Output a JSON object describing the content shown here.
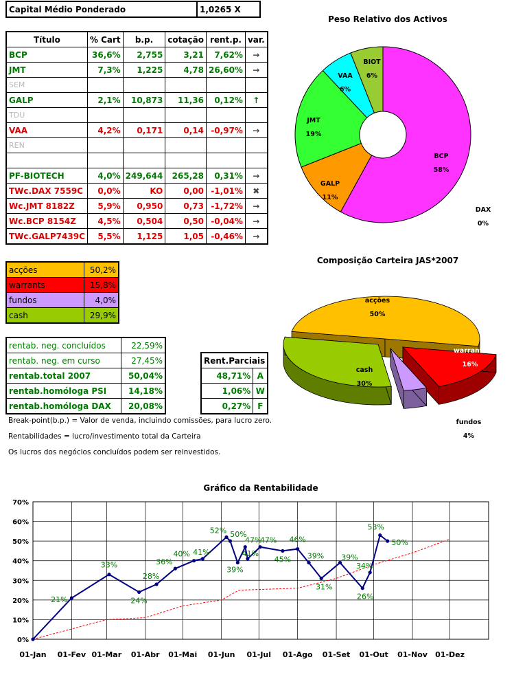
{
  "capital": {
    "label": "Capital Médio Ponderado",
    "value": "1,0265 X"
  },
  "holdings": {
    "headers": [
      "Título",
      "% Cart",
      "b.p.",
      "cotação",
      "rent.p.",
      "var."
    ],
    "rows": [
      {
        "cells": [
          "BCP",
          "36,6%",
          "2,755",
          "3,21",
          "7,62%"
        ],
        "var": "→",
        "style": "green"
      },
      {
        "cells": [
          "JMT",
          "7,3%",
          "1,225",
          "4,78",
          "26,60%"
        ],
        "var": "→",
        "style": "green"
      },
      {
        "cells": [
          "SEM",
          "",
          "",
          "",
          ""
        ],
        "var": "",
        "style": "grey"
      },
      {
        "cells": [
          "GALP",
          "2,1%",
          "10,873",
          "11,36",
          "0,12%"
        ],
        "var": "↑",
        "style": "green"
      },
      {
        "cells": [
          "TDU",
          "",
          "",
          "",
          ""
        ],
        "var": "",
        "style": "grey"
      },
      {
        "cells": [
          "VAA",
          "4,2%",
          "0,171",
          "0,14",
          "-0,97%"
        ],
        "var": "→",
        "style": "red"
      },
      {
        "cells": [
          "REN",
          "",
          "",
          "",
          ""
        ],
        "var": "",
        "style": "grey"
      },
      {
        "cells": [
          "",
          "",
          "",
          "",
          ""
        ],
        "var": "",
        "style": "grey"
      },
      {
        "cells": [
          "PF-BIOTECH",
          "4,0%",
          "249,644",
          "265,28",
          "0,31%"
        ],
        "var": "→",
        "style": "green"
      },
      {
        "cells": [
          "TWc.DAX 7559C",
          "0,0%",
          "KO",
          "0,00",
          "-1,01%"
        ],
        "var": "✖",
        "style": "red"
      },
      {
        "cells": [
          "Wc.JMT 8182Z",
          "5,9%",
          "0,950",
          "0,73",
          "-1,72%"
        ],
        "var": "→",
        "style": "red"
      },
      {
        "cells": [
          "Wc.BCP 8154Z",
          "4,5%",
          "0,504",
          "0,50",
          "-0,04%"
        ],
        "var": "→",
        "style": "red"
      },
      {
        "cells": [
          "TWc.GALP7439C",
          "5,5%",
          "1,125",
          "1,05",
          "-0,46%"
        ],
        "var": "→",
        "style": "red"
      }
    ]
  },
  "composition": [
    {
      "label": "acções",
      "value": "50,2%",
      "color": "#ffc000",
      "text": "#000000"
    },
    {
      "label": "warrants",
      "value": "15,8%",
      "color": "#ff0000",
      "text": "#000000"
    },
    {
      "label": "fundos",
      "value": "4,0%",
      "color": "#cc99ff",
      "text": "#000000"
    },
    {
      "label": "cash",
      "value": "29,9%",
      "color": "#99cc00",
      "text": "#000000"
    }
  ],
  "returns": [
    {
      "label": "rentab. neg. concluídos",
      "value": "22,59%",
      "bold": false
    },
    {
      "label": "rentab. neg. em curso",
      "value": "27,45%",
      "bold": false
    },
    {
      "label": "rentab.total 2007",
      "value": "50,04%",
      "bold": true
    },
    {
      "label": "rentab.homóloga PSI",
      "value": "14,18%",
      "bold": true
    },
    {
      "label": "rentab.homóloga DAX",
      "value": "20,08%",
      "bold": true
    }
  ],
  "partials": {
    "header": "Rent.Parciais",
    "rows": [
      {
        "value": "48,71%",
        "code": "A"
      },
      {
        "value": "1,06%",
        "code": "W"
      },
      {
        "value": "0,27%",
        "code": "F"
      }
    ]
  },
  "notes": [
    "Break-point(b.p.) = Valor de venda, incluindo comissões, para lucro zero.",
    "Rentabilidades = lucro/investimento total da Carteira",
    "Os lucros dos negócios concluídos podem ser reinvestidos."
  ],
  "chart_data": [
    {
      "type": "pie",
      "title": "Peso Relativo dos Activos",
      "style": "doughnut",
      "slices": [
        {
          "label": "BCP",
          "pct_label": "58%",
          "value": 58,
          "color": "#ff33ff"
        },
        {
          "label": "DAX",
          "pct_label": "0%",
          "value": 0,
          "color": "#ff33ff"
        },
        {
          "label": "GALP",
          "pct_label": "11%",
          "value": 11,
          "color": "#ff9900"
        },
        {
          "label": "JMT",
          "pct_label": "19%",
          "value": 19,
          "color": "#33ff33"
        },
        {
          "label": "VAA",
          "pct_label": "6%",
          "value": 6,
          "color": "#00ffff"
        },
        {
          "label": "BIOT",
          "pct_label": "6%",
          "value": 6,
          "color": "#99cc33"
        }
      ]
    },
    {
      "type": "pie",
      "title": "Composição Carteira JAS*2007",
      "style": "3d-exploded",
      "slices": [
        {
          "label": "acções",
          "pct_label": "50%",
          "value": 50,
          "color": "#ffc000"
        },
        {
          "label": "warrants",
          "pct_label": "16%",
          "value": 16,
          "color": "#ff0000"
        },
        {
          "label": "fundos",
          "pct_label": "4%",
          "value": 4,
          "color": "#cc99ff"
        },
        {
          "label": "cash",
          "pct_label": "30%",
          "value": 30,
          "color": "#99cc00"
        }
      ]
    },
    {
      "type": "line",
      "title": "Gráfico da Rentabilidade",
      "x_ticks": [
        "01-Jan",
        "01-Fev",
        "01-Mar",
        "01-Abr",
        "01-Mai",
        "01-Jun",
        "01-Jul",
        "01-Ago",
        "01-Set",
        "01-Out",
        "01-Nov",
        "01-Dez"
      ],
      "y_ticks": [
        "0%",
        "10%",
        "20%",
        "30%",
        "40%",
        "50%",
        "60%",
        "70%"
      ],
      "ylim": [
        0,
        70
      ],
      "grid": true,
      "series": [
        {
          "color": "#000080",
          "points": [
            {
              "x": "01-Jan",
              "y": 0
            },
            {
              "x": "01-Feb",
              "y": 21,
              "label": "21%"
            },
            {
              "x": "03-Mar",
              "y": 33,
              "label": "33%"
            },
            {
              "x": "27-Mar",
              "y": 24,
              "label": "24%"
            },
            {
              "x": "10-Apr",
              "y": 28,
              "label": "28%"
            },
            {
              "x": "25-Apr",
              "y": 36,
              "label": "36%"
            },
            {
              "x": "10-May",
              "y": 40,
              "label": "40%"
            },
            {
              "x": "17-May",
              "y": 41,
              "label": "41%"
            },
            {
              "x": "05-Jun",
              "y": 52,
              "label": "52%"
            },
            {
              "x": "08-Jun",
              "y": 50,
              "label": "50%"
            },
            {
              "x": "14-Jun",
              "y": 39,
              "label": "39%"
            },
            {
              "x": "20-Jun",
              "y": 47,
              "label": "47%"
            },
            {
              "x": "22-Jun",
              "y": 41,
              "label": "41%"
            },
            {
              "x": "02-Jul",
              "y": 47,
              "label": "47%"
            },
            {
              "x": "20-Jul",
              "y": 45,
              "label": "45%"
            },
            {
              "x": "01-Aug",
              "y": 46,
              "label": "46%"
            },
            {
              "x": "10-Aug",
              "y": 39,
              "label": "39%"
            },
            {
              "x": "20-Aug",
              "y": 31,
              "label": "31%"
            },
            {
              "x": "04-Sep",
              "y": 39,
              "label": "39%"
            },
            {
              "x": "22-Sep",
              "y": 26,
              "label": "26%"
            },
            {
              "x": "28-Sep",
              "y": 34,
              "label": "34%"
            },
            {
              "x": "06-Oct",
              "y": 53,
              "label": "53%"
            },
            {
              "x": "12-Oct",
              "y": 50,
              "label": "50%"
            }
          ]
        },
        {
          "color": "#ff0000",
          "style": "dashed",
          "points": [
            {
              "x": "01-Jan",
              "y": 0
            },
            {
              "x": "01-Mar",
              "y": 10
            },
            {
              "x": "01-Apr",
              "y": 11
            },
            {
              "x": "01-May",
              "y": 17
            },
            {
              "x": "01-Jun",
              "y": 20
            },
            {
              "x": "15-Jun",
              "y": 25
            },
            {
              "x": "01-Aug",
              "y": 26
            },
            {
              "x": "01-Sep",
              "y": 31
            },
            {
              "x": "01-Oct",
              "y": 38
            },
            {
              "x": "01-Nov",
              "y": 44
            },
            {
              "x": "01-Dec",
              "y": 51
            }
          ]
        }
      ]
    }
  ]
}
